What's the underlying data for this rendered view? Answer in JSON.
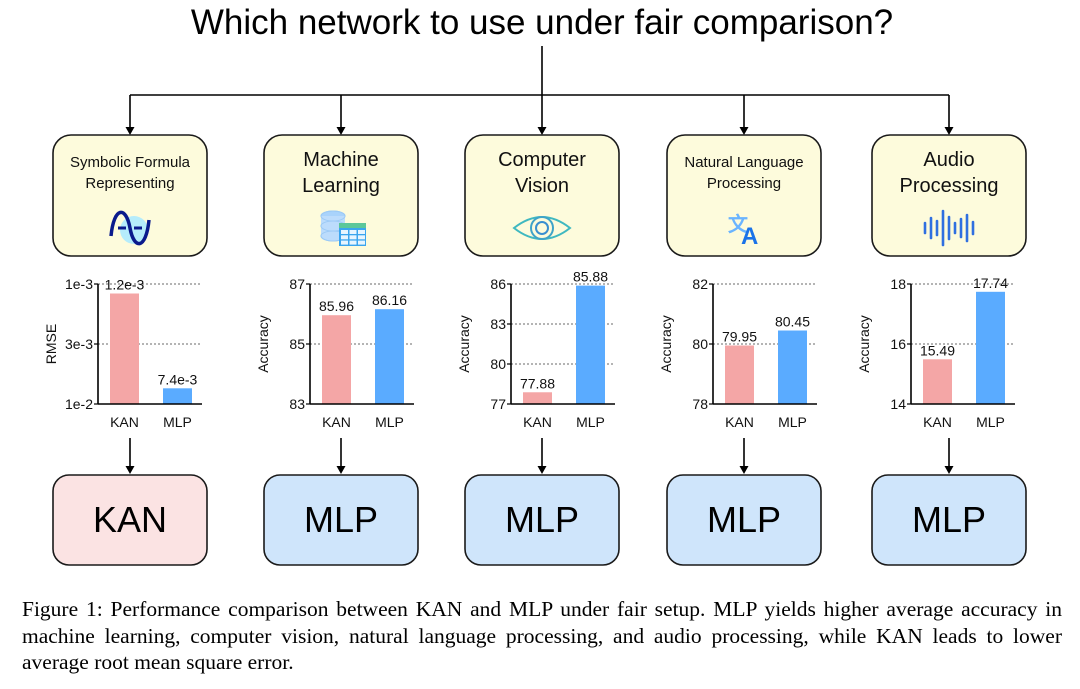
{
  "title": "Which network to use under fair comparison?",
  "colors": {
    "kan": "#f4a6a6",
    "mlp": "#5aabff",
    "task_box": "#fdfbdc",
    "kan_box": "#fbe3e3",
    "mlp_box": "#cfe5fb"
  },
  "tasks": [
    {
      "label": "Symbolic Formula Representing",
      "lines": [
        "Symbolic Formula",
        "Representing"
      ],
      "small": true,
      "icon": "sine-wave-icon",
      "winner": "KAN"
    },
    {
      "label": "Machine Learning",
      "lines": [
        "Machine",
        "Learning"
      ],
      "small": false,
      "icon": "database-table-icon",
      "winner": "MLP"
    },
    {
      "label": "Computer Vision",
      "lines": [
        "Computer",
        "Vision"
      ],
      "small": false,
      "icon": "eye-icon",
      "winner": "MLP"
    },
    {
      "label": "Natural Language Processing",
      "lines": [
        "Natural Language",
        "Processing"
      ],
      "small": true,
      "icon": "translate-icon",
      "winner": "MLP"
    },
    {
      "label": "Audio Processing",
      "lines": [
        "Audio",
        "Processing"
      ],
      "small": false,
      "icon": "audio-waveform-icon",
      "winner": "MLP"
    }
  ],
  "chart_data": [
    {
      "type": "bar",
      "categories": [
        "KAN",
        "MLP"
      ],
      "values": [
        0.0012,
        0.0074
      ],
      "data_labels": [
        "1.2e-3",
        "7.4e-3"
      ],
      "ylabel": "RMSE",
      "scale": "log-inverted",
      "ylim": [
        0.01,
        0.001
      ],
      "yticks": [
        0.01,
        0.003,
        0.001
      ],
      "ytick_labels": [
        "1e-2",
        "3e-3",
        "1e-3"
      ],
      "grid": "dotted-horizontal"
    },
    {
      "type": "bar",
      "categories": [
        "KAN",
        "MLP"
      ],
      "values": [
        85.96,
        86.16
      ],
      "data_labels": [
        "85.96",
        "86.16"
      ],
      "ylabel": "Accuracy",
      "ylim": [
        83,
        87
      ],
      "yticks": [
        83,
        85,
        87
      ],
      "ytick_labels": [
        "83",
        "85",
        "87"
      ],
      "grid": "dotted-horizontal"
    },
    {
      "type": "bar",
      "categories": [
        "KAN",
        "MLP"
      ],
      "values": [
        77.88,
        85.88
      ],
      "data_labels": [
        "77.88",
        "85.88"
      ],
      "ylabel": "Accuracy",
      "ylim": [
        77,
        86
      ],
      "yticks": [
        77,
        80,
        83,
        86
      ],
      "ytick_labels": [
        "77",
        "80",
        "83",
        "86"
      ],
      "grid": "dotted-horizontal"
    },
    {
      "type": "bar",
      "categories": [
        "KAN",
        "MLP"
      ],
      "values": [
        79.95,
        80.45
      ],
      "data_labels": [
        "79.95",
        "80.45"
      ],
      "ylabel": "Accuracy",
      "ylim": [
        78,
        82
      ],
      "yticks": [
        78,
        80,
        82
      ],
      "ytick_labels": [
        "78",
        "80",
        "82"
      ],
      "grid": "dotted-horizontal"
    },
    {
      "type": "bar",
      "categories": [
        "KAN",
        "MLP"
      ],
      "values": [
        15.49,
        17.74
      ],
      "data_labels": [
        "15.49",
        "17.74"
      ],
      "ylabel": "Accuracy",
      "ylim": [
        14,
        18
      ],
      "yticks": [
        14,
        16,
        18
      ],
      "ytick_labels": [
        "14",
        "16",
        "18"
      ],
      "grid": "dotted-horizontal"
    }
  ],
  "caption": "Figure 1: Performance comparison between KAN and MLP under fair setup. MLP yields higher average accuracy in machine learning, computer vision, natural language processing, and audio processing, while KAN leads to lower average root mean square error."
}
